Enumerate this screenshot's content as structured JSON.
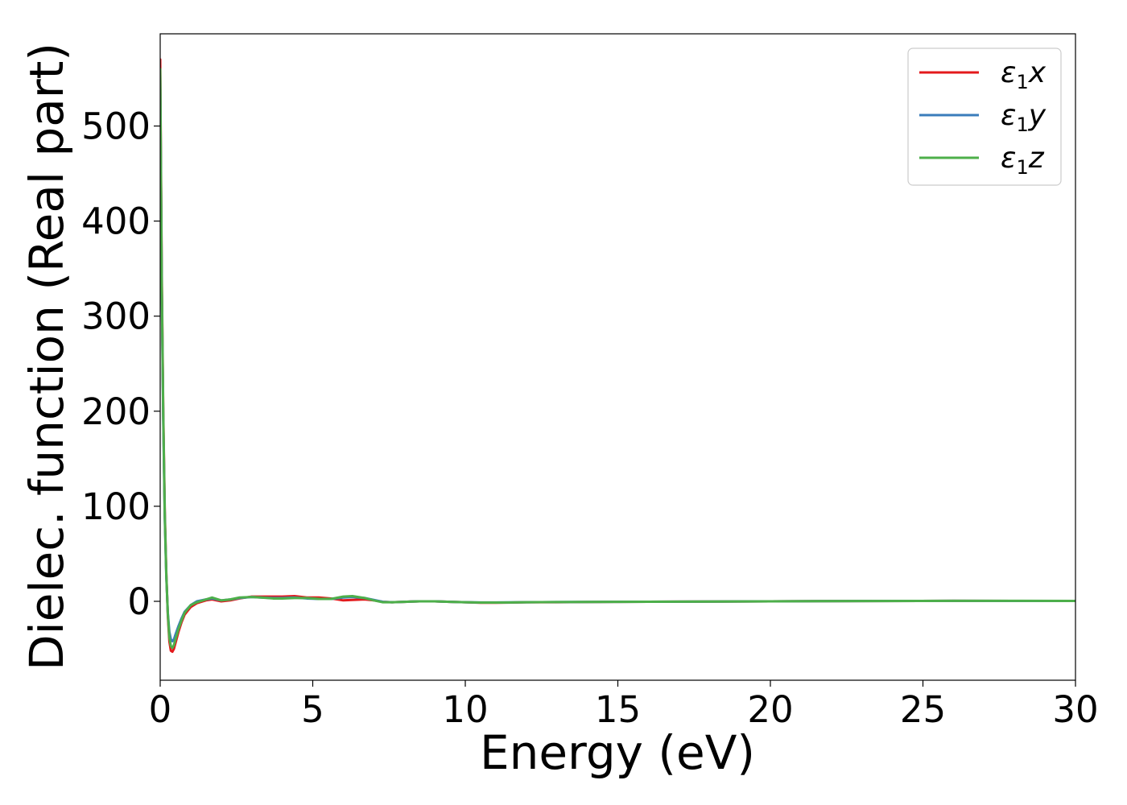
{
  "chart_data": {
    "type": "line",
    "title": "",
    "xlabel": "Energy (eV)",
    "ylabel": "Dielec. function (Real part)",
    "xlim": [
      0,
      30
    ],
    "ylim": [
      -83,
      597
    ],
    "xticks": [
      0,
      5,
      10,
      15,
      20,
      25,
      30
    ],
    "yticks": [
      0,
      100,
      200,
      300,
      400,
      500
    ],
    "xtick_labels": [
      "0",
      "5",
      "10",
      "15",
      "20",
      "25",
      "30"
    ],
    "ytick_labels": [
      "0",
      "100",
      "200",
      "300",
      "400",
      "500"
    ],
    "grid": false,
    "legend_position": "top-right",
    "series": [
      {
        "name": "ε1x",
        "legend_symbol": "ε",
        "legend_sub": "1",
        "legend_suffix": "x",
        "color": "#e31a1c",
        "x": [
          0.0,
          0.02,
          0.05,
          0.1,
          0.15,
          0.2,
          0.25,
          0.3,
          0.35,
          0.4,
          0.45,
          0.5,
          0.6,
          0.7,
          0.8,
          1.0,
          1.2,
          1.5,
          1.7,
          2.0,
          2.3,
          2.6,
          3.0,
          3.3,
          3.7,
          4.0,
          4.4,
          4.8,
          5.2,
          5.6,
          6.0,
          6.3,
          6.7,
          7.0,
          7.3,
          7.6,
          8.0,
          8.5,
          9.0,
          9.5,
          10.0,
          10.5,
          11.0,
          12.0,
          13.0,
          15.0,
          17.0,
          20.0,
          23.0,
          26.0,
          28.0,
          30.0
        ],
        "values": [
          570,
          480,
          350,
          200,
          95,
          30,
          -15,
          -42,
          -52,
          -53,
          -50,
          -44,
          -32,
          -22,
          -14,
          -6,
          -2,
          1,
          2,
          0,
          1,
          3,
          5,
          5,
          5,
          5,
          5.5,
          4,
          4,
          3,
          1,
          1.5,
          2,
          1,
          -0.5,
          -1,
          -0.5,
          0,
          0,
          -0.5,
          -1,
          -1.5,
          -1.5,
          -1,
          -1,
          -0.5,
          -0.3,
          0,
          0.3,
          0.5,
          0.4,
          0.4
        ]
      },
      {
        "name": "ε1y",
        "legend_symbol": "ε",
        "legend_sub": "1",
        "legend_suffix": "y",
        "color": "#3a7dbb",
        "x": [
          0.0,
          0.02,
          0.05,
          0.1,
          0.15,
          0.2,
          0.25,
          0.3,
          0.35,
          0.4,
          0.45,
          0.5,
          0.6,
          0.7,
          0.8,
          1.0,
          1.2,
          1.5,
          1.7,
          2.0,
          2.3,
          2.6,
          3.0,
          3.3,
          3.7,
          4.0,
          4.4,
          4.8,
          5.2,
          5.6,
          6.0,
          6.3,
          6.7,
          7.0,
          7.3,
          7.6,
          8.0,
          8.5,
          9.0,
          9.5,
          10.0,
          10.5,
          11.0,
          12.0,
          13.0,
          15.0,
          17.0,
          20.0,
          23.0,
          26.0,
          28.0,
          30.0
        ],
        "values": [
          555,
          465,
          335,
          190,
          88,
          26,
          -12,
          -32,
          -40,
          -42,
          -40,
          -35,
          -26,
          -18,
          -11,
          -4,
          0,
          2,
          3,
          1,
          2,
          3.5,
          4.5,
          4,
          3.5,
          3.5,
          4,
          3,
          2.5,
          2.5,
          4,
          4.5,
          3.5,
          1.5,
          -0.5,
          -1,
          -0.5,
          0,
          0,
          -0.5,
          -1,
          -1.2,
          -1.2,
          -1,
          -0.8,
          -0.5,
          -0.3,
          0,
          0.3,
          0.5,
          0.4,
          0.4
        ]
      },
      {
        "name": "ε1z",
        "legend_symbol": "ε",
        "legend_sub": "1",
        "legend_suffix": "z",
        "color": "#4daf4a",
        "x": [
          0.0,
          0.02,
          0.05,
          0.1,
          0.15,
          0.2,
          0.25,
          0.3,
          0.35,
          0.4,
          0.45,
          0.5,
          0.6,
          0.7,
          0.8,
          1.0,
          1.2,
          1.5,
          1.7,
          2.0,
          2.3,
          2.6,
          3.0,
          3.3,
          3.7,
          4.0,
          4.4,
          4.8,
          5.2,
          5.6,
          6.0,
          6.3,
          6.7,
          7.0,
          7.3,
          7.6,
          8.0,
          8.5,
          9.0,
          9.5,
          10.0,
          10.5,
          11.0,
          12.0,
          13.0,
          15.0,
          17.0,
          20.0,
          23.0,
          26.0,
          28.0,
          30.0
        ],
        "values": [
          560,
          470,
          340,
          195,
          90,
          28,
          -13,
          -38,
          -47,
          -49,
          -46,
          -40,
          -29,
          -20,
          -12,
          -4,
          -1,
          2,
          4,
          1,
          2,
          4,
          4.5,
          4,
          3,
          3,
          3.5,
          3.5,
          2.5,
          2.5,
          5,
          5.5,
          3.5,
          1,
          -1,
          -1,
          -0.5,
          0,
          0,
          -0.5,
          -1,
          -1.3,
          -1.3,
          -1,
          -0.8,
          -0.5,
          -0.3,
          0,
          0.3,
          0.5,
          0.5,
          0.4
        ]
      }
    ]
  }
}
